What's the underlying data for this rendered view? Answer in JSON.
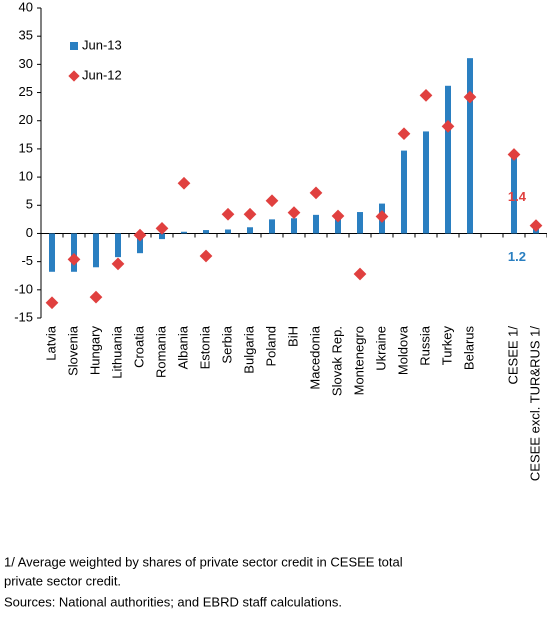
{
  "chart_data": {
    "type": "bar",
    "categories": [
      "Latvia",
      "Slovenia",
      "Hungary",
      "Lithuania",
      "Croatia",
      "Romania",
      "Albania",
      "Estonia",
      "Serbia",
      "Bulgaria",
      "Poland",
      "BiH",
      "Macedonia",
      "Slovak Rep.",
      "Montenegro",
      "Ukraine",
      "Moldova",
      "Russia",
      "Turkey",
      "Belarus",
      null,
      "CESEE 1/",
      "CESEE excl. TUR&RUS 1/"
    ],
    "series": [
      {
        "name": "Jun-13",
        "type": "bar",
        "color": "#2a7fc1",
        "values": [
          -6.8,
          -6.8,
          -6,
          -4.2,
          -3.5,
          -1,
          0.3,
          0.6,
          0.7,
          1.1,
          2.5,
          2.7,
          3.3,
          3.6,
          3.8,
          5.3,
          14.7,
          18.1,
          26.2,
          31.1,
          null,
          14,
          1.2
        ]
      },
      {
        "name": "Jun-12",
        "type": "scatter",
        "color": "#e0403f",
        "values": [
          -12.3,
          -4.6,
          -11.3,
          -5.4,
          -0.3,
          0.9,
          8.9,
          -4,
          3.4,
          3.4,
          5.8,
          3.7,
          7.2,
          3.1,
          -7.2,
          3,
          17.7,
          24.5,
          19,
          24.2,
          null,
          14,
          1.4
        ]
      }
    ],
    "ylim": [
      -15,
      40
    ],
    "yticks": [
      -15,
      -10,
      -5,
      0,
      5,
      10,
      15,
      20,
      25,
      30,
      35,
      40
    ],
    "grid": false,
    "legend": "top-left",
    "footnotes": [
      "1/ Average weighted by shares of private sector credit in CESEE total",
      "private sector credit.",
      "Sources: National authorities; and EBRD staff calculations."
    ]
  }
}
